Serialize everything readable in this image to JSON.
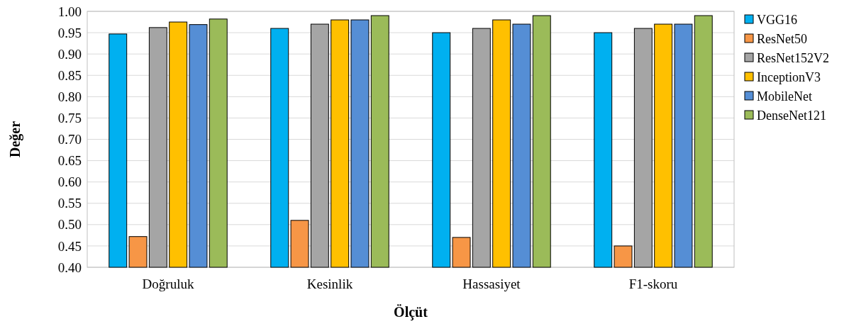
{
  "chart_data": {
    "type": "bar",
    "xlabel": "Ölçüt",
    "ylabel": "Değer",
    "categories": [
      "Doğruluk",
      "Kesinlik",
      "Hassasiyet",
      "F1-skoru"
    ],
    "series": [
      {
        "name": "VGG16",
        "color": "#00b0f0",
        "values": [
          0.947,
          0.96,
          0.95,
          0.95
        ]
      },
      {
        "name": "ResNet50",
        "color": "#f79646",
        "values": [
          0.472,
          0.51,
          0.47,
          0.45
        ]
      },
      {
        "name": "ResNet152V2",
        "color": "#a5a5a5",
        "values": [
          0.962,
          0.97,
          0.96,
          0.96
        ]
      },
      {
        "name": "InceptionV3",
        "color": "#ffc000",
        "values": [
          0.975,
          0.98,
          0.98,
          0.97
        ]
      },
      {
        "name": "MobileNet",
        "color": "#558ed5",
        "values": [
          0.969,
          0.98,
          0.97,
          0.97
        ]
      },
      {
        "name": "DenseNet121",
        "color": "#9bbb59",
        "values": [
          0.982,
          0.99,
          0.99,
          0.99
        ]
      }
    ],
    "ylim": [
      0.4,
      1.0
    ],
    "yticks": [
      {
        "value": 0.4,
        "label": "0.40"
      },
      {
        "value": 0.45,
        "label": "0.45"
      },
      {
        "value": 0.5,
        "label": "0.50"
      },
      {
        "value": 0.55,
        "label": "0.55"
      },
      {
        "value": 0.6,
        "label": "0.60"
      },
      {
        "value": 0.65,
        "label": "0.65"
      },
      {
        "value": 0.7,
        "label": "0.70"
      },
      {
        "value": 0.75,
        "label": "0.75"
      },
      {
        "value": 0.8,
        "label": "0.80"
      },
      {
        "value": 0.85,
        "label": "0.85"
      },
      {
        "value": 0.9,
        "label": "0.90"
      },
      {
        "value": 0.95,
        "label": "0.95"
      },
      {
        "value": 1.0,
        "label": "1.00"
      }
    ],
    "grid": "y",
    "legend": "right"
  }
}
